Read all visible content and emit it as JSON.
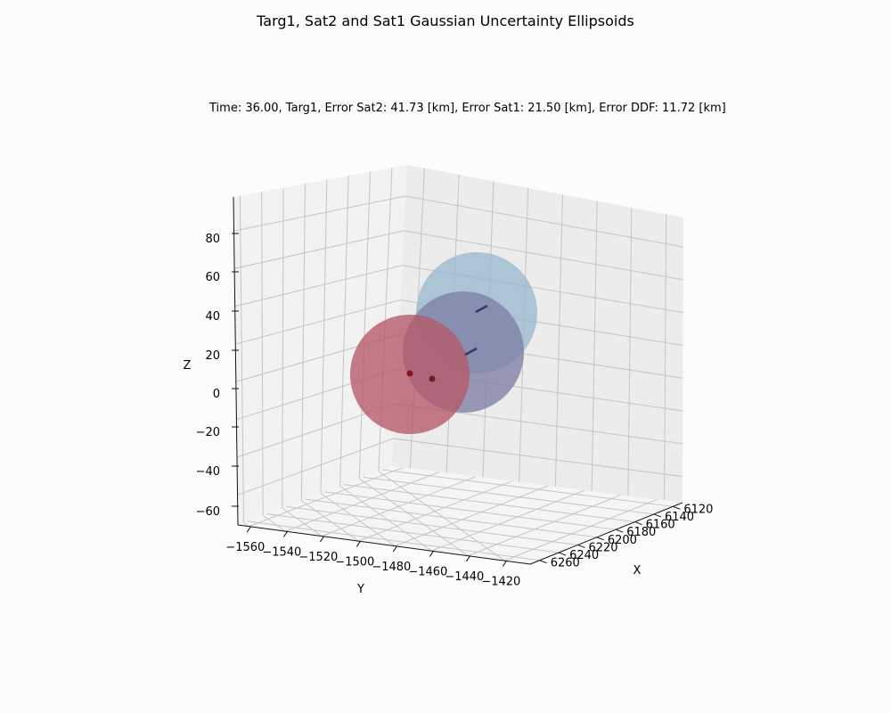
{
  "figure": {
    "title": "Targ1, Sat2 and Sat1 Gaussian Uncertainty Ellipsoids",
    "subtitle": "Time: 36.00, Targ1, Error Sat2: 41.73 [km], Error Sat1: 21.50 [km], Error DDF: 11.72 [km]"
  },
  "chart_data": {
    "type": "scatter",
    "projection": "3d",
    "title": "Targ1, Sat2 and Sat1 Gaussian Uncertainty Ellipsoids",
    "subtitle": "Time: 36.00, Targ1, Error Sat2: 41.73 [km], Error Sat1: 21.50 [km], Error DDF: 11.72 [km]",
    "xlabel": "X",
    "ylabel": "Y",
    "zlabel": "Z",
    "x_ticks": [
      "6120",
      "6140",
      "6160",
      "6180",
      "6200",
      "6220",
      "6240",
      "6260"
    ],
    "y_ticks": [
      "−1560",
      "−1540",
      "−1520",
      "−1500",
      "−1480",
      "−1460",
      "−1440",
      "−1420"
    ],
    "z_ticks": [
      "80",
      "60",
      "40",
      "20",
      "0",
      "−20",
      "−40",
      "−60"
    ],
    "grid": true,
    "ellipsoids": [
      {
        "color": "#9ab9cd",
        "x": 6175,
        "y": -1455,
        "z": 38
      },
      {
        "color": "#7e7fa5",
        "x": 6200,
        "y": -1468,
        "z": 20
      },
      {
        "color": "#b65868",
        "x": 6215,
        "y": -1520,
        "z": 5
      }
    ],
    "points": [
      {
        "color": "#8b1020",
        "x": 6218,
        "y": -1515,
        "z": 8
      },
      {
        "color": "#5a2a22",
        "x": 6225,
        "y": -1505,
        "z": 2
      },
      {
        "color": "#2f3d5e",
        "x": 6175,
        "y": -1452,
        "z": 42
      },
      {
        "color": "#2f3d5e",
        "x": 6198,
        "y": -1465,
        "z": 18
      }
    ]
  }
}
